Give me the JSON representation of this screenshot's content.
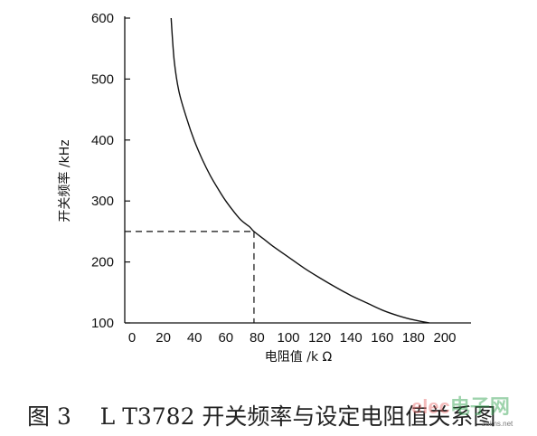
{
  "chart_data": {
    "type": "line",
    "title": "",
    "xlabel": "电阻值 /k Ω",
    "ylabel": "开关频率 /kHz",
    "xlim": [
      -10,
      220
    ],
    "ylim": [
      100,
      600
    ],
    "x_ticks": [
      0,
      20,
      40,
      60,
      80,
      100,
      120,
      140,
      160,
      180,
      200
    ],
    "y_ticks": [
      100,
      200,
      300,
      400,
      500,
      600
    ],
    "grid": false,
    "legend": "none",
    "series": [
      {
        "x": [
          25,
          27,
          30,
          35,
          40,
          45,
          50,
          55,
          60,
          65,
          70,
          75,
          78,
          85,
          90,
          100,
          110,
          120,
          130,
          140,
          150,
          160,
          170,
          180,
          190
        ],
        "y": [
          600,
          530,
          480,
          435,
          398,
          368,
          342,
          320,
          300,
          283,
          268,
          258,
          250,
          236,
          226,
          208,
          190,
          174,
          159,
          145,
          133,
          121,
          112,
          105,
          100
        ]
      }
    ],
    "annotations": {
      "dashed_marker": {
        "x": 78,
        "y": 250
      }
    },
    "line_color": "#111111"
  },
  "caption": "图 3    L T3782 开关频率与设定电阻值关系图",
  "watermark": {
    "main": "elec",
    "sub": "电子网",
    "url": "zuims.net"
  }
}
